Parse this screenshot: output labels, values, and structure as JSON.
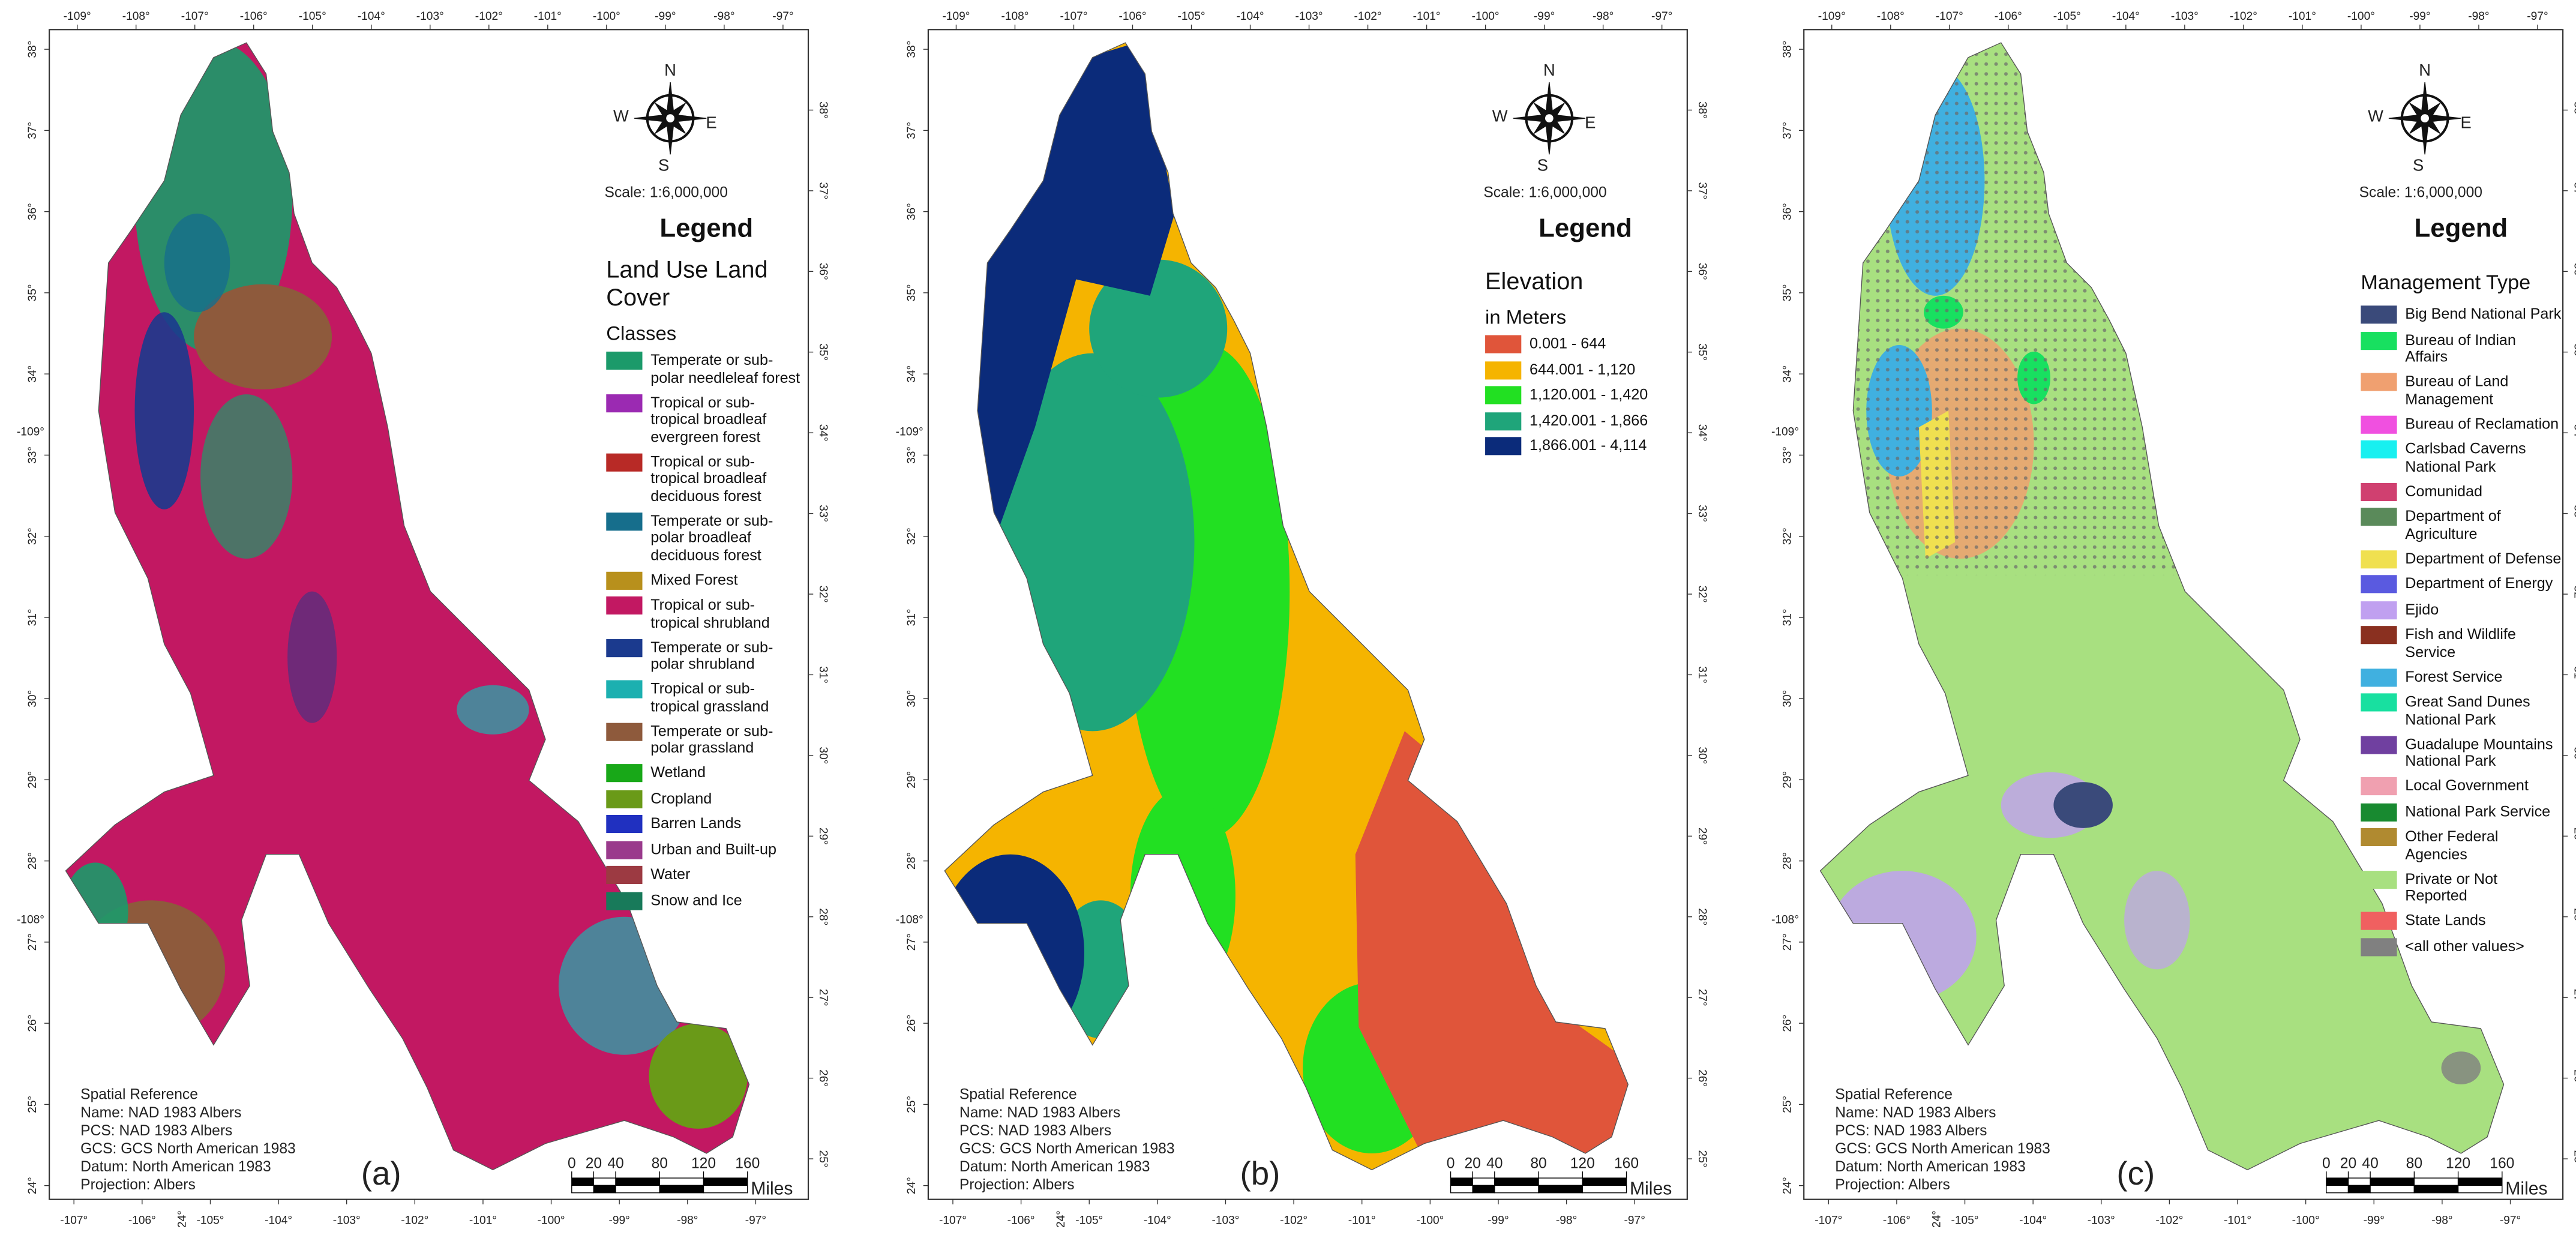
{
  "graticule": {
    "top": [
      {
        "value": -109,
        "label": "-109°"
      },
      {
        "value": -108,
        "label": "-108°"
      },
      {
        "value": -107,
        "label": "-107°"
      },
      {
        "value": -106,
        "label": "-106°"
      },
      {
        "value": -105,
        "label": "-105°"
      },
      {
        "value": -104,
        "label": "-104°"
      },
      {
        "value": -103,
        "label": "-103°"
      },
      {
        "value": -102,
        "label": "-102°"
      },
      {
        "value": -101,
        "label": "-101°"
      },
      {
        "value": -100,
        "label": "-100°"
      },
      {
        "value": -99,
        "label": "-99°"
      },
      {
        "value": -98,
        "label": "-98°"
      },
      {
        "value": -97,
        "label": "-97°"
      }
    ],
    "bottom": [
      {
        "value": -107,
        "label": "-107°"
      },
      {
        "value": -106,
        "label": "-106°"
      },
      {
        "value": -105,
        "label": "-105°"
      },
      {
        "value": -104,
        "label": "-104°"
      },
      {
        "value": -103,
        "label": "-103°"
      },
      {
        "value": -102,
        "label": "-102°"
      },
      {
        "value": -101,
        "label": "-101°"
      },
      {
        "value": -100,
        "label": "-100°"
      },
      {
        "value": -99,
        "label": "-99°"
      },
      {
        "value": -98,
        "label": "-98°"
      },
      {
        "value": -97,
        "label": "-97°"
      }
    ],
    "left": [
      {
        "value": 38,
        "label": "38°"
      },
      {
        "value": 37,
        "label": "37°"
      },
      {
        "value": 36,
        "label": "36°"
      },
      {
        "value": 35,
        "label": "35°"
      },
      {
        "value": 34,
        "label": "34°"
      },
      {
        "value": 33,
        "label": "33°"
      },
      {
        "value": 32,
        "label": "32°"
      },
      {
        "value": 31,
        "label": "31°"
      },
      {
        "value": 30,
        "label": "30°"
      },
      {
        "value": 29,
        "label": "29°"
      },
      {
        "value": 28,
        "label": "28°"
      },
      {
        "value": 27,
        "label": "27°"
      },
      {
        "value": 26,
        "label": "26°"
      },
      {
        "value": 25,
        "label": "25°"
      },
      {
        "value": 24,
        "label": "24°"
      }
    ],
    "right": [
      {
        "value": 38,
        "label": "38°"
      },
      {
        "value": 37,
        "label": "37°"
      },
      {
        "value": 36,
        "label": "36°"
      },
      {
        "value": 35,
        "label": "35°"
      },
      {
        "value": 34,
        "label": "34°"
      },
      {
        "value": 33,
        "label": "33°"
      },
      {
        "value": 32,
        "label": "32°"
      },
      {
        "value": 31,
        "label": "31°"
      },
      {
        "value": 30,
        "label": "30°"
      },
      {
        "value": 29,
        "label": "29°"
      },
      {
        "value": 28,
        "label": "28°"
      },
      {
        "value": 27,
        "label": "27°"
      },
      {
        "value": 26,
        "label": "26°"
      },
      {
        "value": 25,
        "label": "25°"
      }
    ],
    "left_extra": [
      "-109°",
      "-108°"
    ],
    "bottom_extra": "24°"
  },
  "compass": {
    "n": "N",
    "e": "E",
    "s": "S",
    "w": "W"
  },
  "scale": "Scale: 1:6,000,000",
  "legend_title": "Legend",
  "spatial_reference": [
    "Spatial Reference",
    "Name: NAD 1983 Albers",
    "PCS: NAD 1983 Albers",
    "GCS: GCS North American 1983",
    "Datum: North American 1983",
    "Projection: Albers"
  ],
  "scale_bar": {
    "ticks": [
      0,
      20,
      40,
      80,
      120,
      160
    ],
    "unit": "Miles"
  },
  "panels": [
    {
      "label": "(a)",
      "heading": "Land Use Land Cover",
      "subheading": "Classes",
      "items": [
        {
          "name": "Temperate or sub-polar needleleaf forest",
          "color": "#1b9a6a"
        },
        {
          "name": "Tropical or sub-tropical broadleaf evergreen forest",
          "color": "#9b2ab2"
        },
        {
          "name": "Tropical or sub-tropical broadleaf deciduous forest",
          "color": "#b82a26"
        },
        {
          "name": "Temperate or sub-polar broadleaf deciduous forest",
          "color": "#166e8c"
        },
        {
          "name": "Mixed Forest",
          "color": "#b8901c"
        },
        {
          "name": "Tropical or sub-tropical shrubland",
          "color": "#c21862"
        },
        {
          "name": "Temperate or sub-polar shrubland",
          "color": "#1b3a8e"
        },
        {
          "name": "Tropical or sub-tropical grassland",
          "color": "#1cb0b0"
        },
        {
          "name": "Temperate or sub-polar grassland",
          "color": "#8e5a3c"
        },
        {
          "name": "Wetland",
          "color": "#18a818"
        },
        {
          "name": "Cropland",
          "color": "#6a9a18"
        },
        {
          "name": "Barren Lands",
          "color": "#2030c0"
        },
        {
          "name": "Urban and Built-up",
          "color": "#9a3a8c"
        },
        {
          "name": "Water",
          "color": "#9c3a42"
        },
        {
          "name": "Snow and Ice",
          "color": "#187a5a"
        }
      ]
    },
    {
      "label": "(b)",
      "heading": "Elevation",
      "subheading": "in Meters",
      "items": [
        {
          "name": "0.001 - 644",
          "color": "#e0553a"
        },
        {
          "name": "644.001 - 1,120",
          "color": "#f5b400"
        },
        {
          "name": "1,120.001 - 1,420",
          "color": "#22e022"
        },
        {
          "name": "1,420.001 - 1,866",
          "color": "#1fa57a"
        },
        {
          "name": "1,866.001 - 4,114",
          "color": "#0b2b7a"
        }
      ]
    },
    {
      "label": "(c)",
      "heading": "Management Type",
      "items": [
        {
          "name": "Big Bend National Park",
          "color": "#3a4a7a"
        },
        {
          "name": "Bureau of Indian Affairs",
          "color": "#18e060"
        },
        {
          "name": "Bureau of Land Management",
          "color": "#f0a070"
        },
        {
          "name": "Bureau of Reclamation",
          "color": "#f050e0"
        },
        {
          "name": "Carlsbad Caverns National Park",
          "color": "#18f0f0"
        },
        {
          "name": "Comunidad",
          "color": "#d04070"
        },
        {
          "name": "Department of Agriculture",
          "color": "#5a8a5a"
        },
        {
          "name": "Department of Defense",
          "color": "#f0e050"
        },
        {
          "name": "Department of Energy",
          "color": "#5a5ae0"
        },
        {
          "name": "Ejido",
          "color": "#c0a0f0"
        },
        {
          "name": "Fish and Wildlife Service",
          "color": "#8a3020"
        },
        {
          "name": "Forest Service",
          "color": "#40b0e0"
        },
        {
          "name": "Great Sand Dunes National Park",
          "color": "#18e0a0"
        },
        {
          "name": "Guadalupe Mountains National Park",
          "color": "#7040a0"
        },
        {
          "name": "Local Government",
          "color": "#f0a0b0"
        },
        {
          "name": "National Park Service",
          "color": "#188a30"
        },
        {
          "name": "Other Federal Agencies",
          "color": "#b08a30"
        },
        {
          "name": "Private or Not Reported",
          "color": "#a8e080"
        },
        {
          "name": "State Lands",
          "color": "#f06060"
        },
        {
          "name": "<all other values>",
          "color": "#808080"
        }
      ]
    }
  ]
}
